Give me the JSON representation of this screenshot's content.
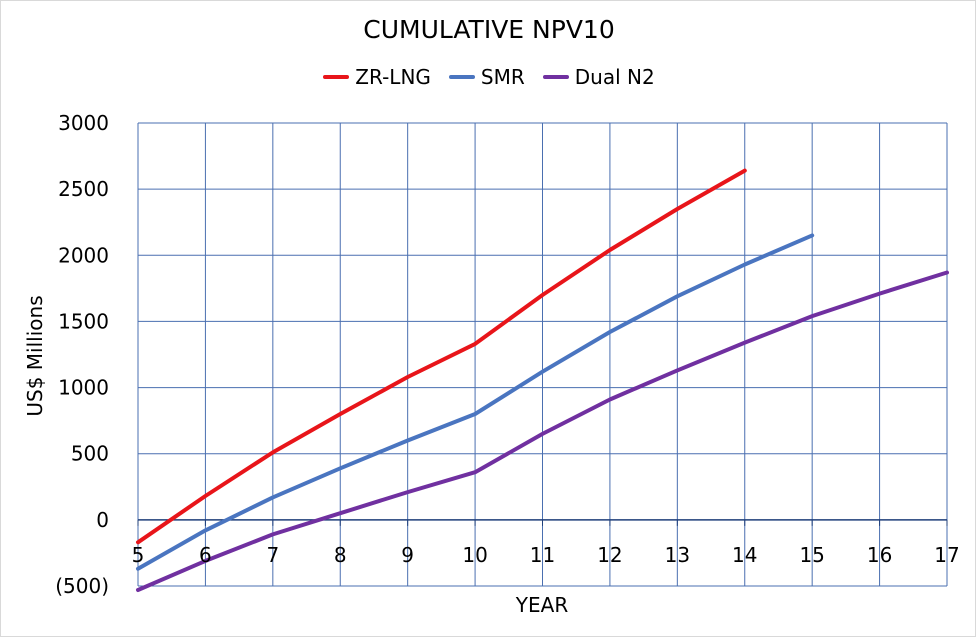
{
  "chart_data": {
    "type": "line",
    "title": "CUMULATIVE NPV10",
    "xlabel": "YEAR",
    "ylabel": "US$ Millions",
    "xlim": [
      5,
      17
    ],
    "ylim": [
      -500,
      3000
    ],
    "x_ticks": [
      "5",
      "6",
      "7",
      "8",
      "9",
      "10",
      "11",
      "12",
      "13",
      "14",
      "15",
      "16",
      "17"
    ],
    "y_ticks": [
      {
        "value": 3000,
        "label": "3000"
      },
      {
        "value": 2500,
        "label": "2500"
      },
      {
        "value": 2000,
        "label": "2000"
      },
      {
        "value": 1500,
        "label": "1500"
      },
      {
        "value": 1000,
        "label": "1000"
      },
      {
        "value": 500,
        "label": "500"
      },
      {
        "value": 0,
        "label": "0"
      },
      {
        "value": -500,
        "label": "(500)",
        "color": "#ff0000"
      }
    ],
    "grid": true,
    "legend_position": "top",
    "series": [
      {
        "name": "ZR-LNG",
        "color": "#e8151a",
        "x": [
          5,
          6,
          7,
          8,
          9,
          10,
          11,
          12,
          13,
          14
        ],
        "values": [
          -170,
          180,
          510,
          800,
          1080,
          1330,
          1700,
          2040,
          2350,
          2640
        ]
      },
      {
        "name": "SMR",
        "color": "#4a75c0",
        "x": [
          5,
          6,
          7,
          8,
          9,
          10,
          11,
          12,
          13,
          14,
          15
        ],
        "values": [
          -370,
          -80,
          170,
          390,
          600,
          800,
          1120,
          1420,
          1690,
          1930,
          2150
        ]
      },
      {
        "name": "Dual N2",
        "color": "#7030a0",
        "x": [
          5,
          6,
          7,
          8,
          9,
          10,
          11,
          12,
          13,
          14,
          15,
          16,
          17
        ],
        "values": [
          -530,
          -310,
          -110,
          50,
          210,
          360,
          650,
          910,
          1130,
          1340,
          1540,
          1710,
          1870
        ]
      }
    ]
  }
}
